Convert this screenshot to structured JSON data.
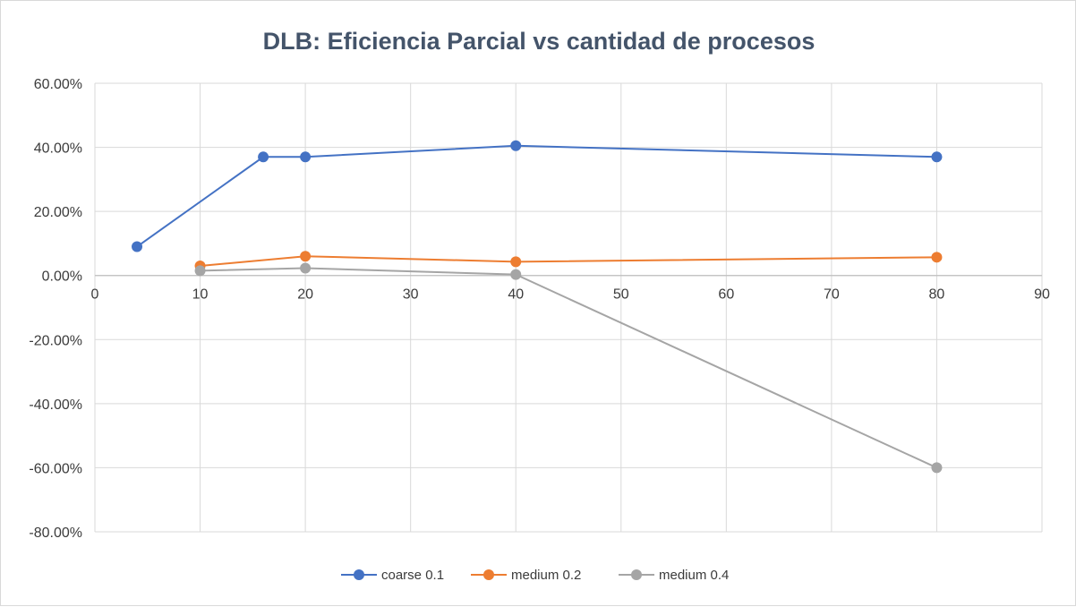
{
  "chart_data": {
    "type": "scatter",
    "title": "DLB: Eficiencia Parcial vs cantidad de procesos",
    "xlabel": "",
    "ylabel": "",
    "xlim": [
      0,
      90
    ],
    "ylim": [
      -80,
      60
    ],
    "x_ticks": [
      "0",
      "10",
      "20",
      "30",
      "40",
      "50",
      "60",
      "70",
      "80",
      "90"
    ],
    "y_ticks": [
      "60.00%",
      "40.00%",
      "20.00%",
      "0.00%",
      "-20.00%",
      "-40.00%",
      "-60.00%",
      "-80.00%"
    ],
    "legend_position": "bottom",
    "grid": true,
    "series": [
      {
        "name": "coarse 0.1",
        "color": "#4472c4",
        "x": [
          4,
          16,
          20,
          40,
          80
        ],
        "y": [
          9.0,
          37.0,
          37.0,
          40.5,
          37.0
        ]
      },
      {
        "name": "medium 0.2",
        "color": "#ed7d31",
        "x": [
          10,
          20,
          40,
          80
        ],
        "y": [
          3.0,
          6.0,
          4.3,
          5.7
        ]
      },
      {
        "name": "medium 0.4",
        "color": "#a5a5a5",
        "x": [
          10,
          20,
          40,
          80
        ],
        "y": [
          1.5,
          2.3,
          0.3,
          -60.0
        ]
      }
    ]
  }
}
